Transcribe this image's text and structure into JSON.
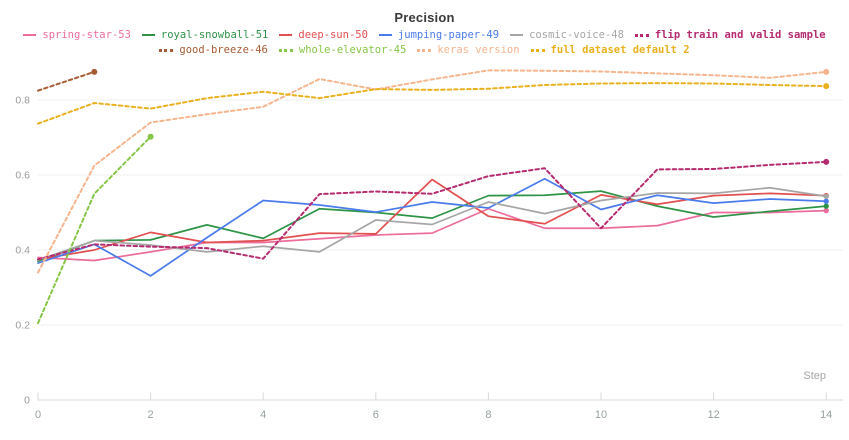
{
  "chart_data": {
    "type": "line",
    "title": "Precision",
    "xlabel": "Step",
    "ylabel": "",
    "xlim": [
      0,
      14
    ],
    "ylim": [
      0,
      0.92
    ],
    "x_ticks": [
      0,
      2,
      4,
      6,
      8,
      10,
      12,
      14
    ],
    "y_ticks": [
      0,
      0.2,
      0.4,
      0.6,
      0.8
    ],
    "y_tick_labels": [
      "0",
      "0.2",
      "0.4",
      "0.6",
      "0.8"
    ],
    "grid": "horizontal-only",
    "legend_position": "top",
    "colors": {
      "axis_line": "#d8d8dc",
      "gridline": "#efeff2",
      "y_tick_text": "#9b9b9b",
      "x_tick_text": "#96a1a1",
      "step_label_text": "#a5a5a5",
      "title_text": "#3a3a3a"
    },
    "series": [
      {
        "name": "spring-star-53",
        "color": "#ec6c9c",
        "style": "solid",
        "legend_row": 1,
        "bold": false,
        "x": [
          0,
          1,
          2,
          3,
          4,
          5,
          6,
          7,
          8,
          9,
          10,
          11,
          12,
          13,
          14
        ],
        "values": [
          0.38,
          0.372,
          0.395,
          0.42,
          0.42,
          0.43,
          0.44,
          0.445,
          0.51,
          0.458,
          0.458,
          0.465,
          0.5,
          0.5,
          0.505
        ]
      },
      {
        "name": "royal-snowball-51",
        "color": "#2f9448",
        "style": "solid",
        "legend_row": 1,
        "bold": false,
        "x": [
          0,
          1,
          2,
          3,
          4,
          5,
          6,
          7,
          8,
          9,
          10,
          11,
          12,
          13,
          14
        ],
        "values": [
          0.37,
          0.425,
          0.427,
          0.467,
          0.431,
          0.51,
          0.5,
          0.485,
          0.545,
          0.546,
          0.557,
          0.517,
          0.488,
          0.503,
          0.517
        ]
      },
      {
        "name": "deep-sun-50",
        "color": "#e25050",
        "style": "solid",
        "legend_row": 1,
        "bold": false,
        "x": [
          0,
          1,
          2,
          3,
          4,
          5,
          6,
          7,
          8,
          9,
          10,
          11,
          12,
          13,
          14
        ],
        "values": [
          0.375,
          0.4,
          0.447,
          0.42,
          0.425,
          0.445,
          0.443,
          0.588,
          0.49,
          0.47,
          0.547,
          0.522,
          0.545,
          0.551,
          0.545
        ]
      },
      {
        "name": "jumping-paper-49",
        "color": "#4a7bec",
        "style": "solid",
        "legend_row": 1,
        "bold": false,
        "x": [
          0,
          1,
          2,
          3,
          4,
          5,
          6,
          7,
          8,
          9,
          10,
          11,
          12,
          13,
          14
        ],
        "values": [
          0.365,
          0.415,
          0.331,
          0.433,
          0.532,
          0.52,
          0.501,
          0.528,
          0.512,
          0.59,
          0.508,
          0.546,
          0.525,
          0.536,
          0.53
        ]
      },
      {
        "name": "cosmic-voice-48",
        "color": "#a6a6a6",
        "style": "solid",
        "legend_row": 1,
        "bold": false,
        "x": [
          0,
          1,
          2,
          3,
          4,
          5,
          6,
          7,
          8,
          9,
          10,
          11,
          12,
          13,
          14
        ],
        "values": [
          0.373,
          0.425,
          0.413,
          0.395,
          0.41,
          0.395,
          0.48,
          0.468,
          0.528,
          0.497,
          0.532,
          0.552,
          0.551,
          0.566,
          0.543
        ]
      },
      {
        "name": "flip train and valid sample",
        "color": "#b62a6f",
        "style": "dashed",
        "legend_row": 1,
        "bold": true,
        "x": [
          0,
          1,
          2,
          3,
          4,
          5,
          6,
          7,
          8,
          9,
          10,
          11,
          12,
          13,
          14
        ],
        "values": [
          0.375,
          0.415,
          0.409,
          0.405,
          0.377,
          0.549,
          0.556,
          0.55,
          0.597,
          0.618,
          0.458,
          0.615,
          0.616,
          0.627,
          0.635
        ]
      },
      {
        "name": "good-breeze-46",
        "color": "#a55c35",
        "style": "dashed",
        "legend_row": 2,
        "bold": false,
        "x": [
          0,
          1
        ],
        "values": [
          0.825,
          0.875
        ]
      },
      {
        "name": "whole-elevator-45",
        "color": "#86c646",
        "style": "dashed",
        "legend_row": 2,
        "bold": false,
        "x": [
          0,
          1,
          2
        ],
        "values": [
          0.205,
          0.55,
          0.702
        ]
      },
      {
        "name": "keras version",
        "color": "#f6b58e",
        "style": "dashed",
        "legend_row": 2,
        "bold": false,
        "x": [
          0,
          1,
          2,
          3,
          4,
          5,
          6,
          7,
          8,
          9,
          10,
          11,
          12,
          13,
          14
        ],
        "values": [
          0.34,
          0.625,
          0.74,
          0.762,
          0.782,
          0.856,
          0.828,
          0.855,
          0.879,
          0.878,
          0.876,
          0.871,
          0.866,
          0.859,
          0.875
        ]
      },
      {
        "name": "full dataset default 2",
        "color": "#eab11e",
        "style": "dashed",
        "legend_row": 2,
        "bold": true,
        "x": [
          0,
          1,
          2,
          3,
          4,
          5,
          6,
          7,
          8,
          9,
          10,
          11,
          12,
          13,
          14
        ],
        "values": [
          0.737,
          0.792,
          0.777,
          0.805,
          0.822,
          0.805,
          0.829,
          0.827,
          0.83,
          0.84,
          0.844,
          0.845,
          0.844,
          0.84,
          0.837
        ]
      }
    ]
  }
}
